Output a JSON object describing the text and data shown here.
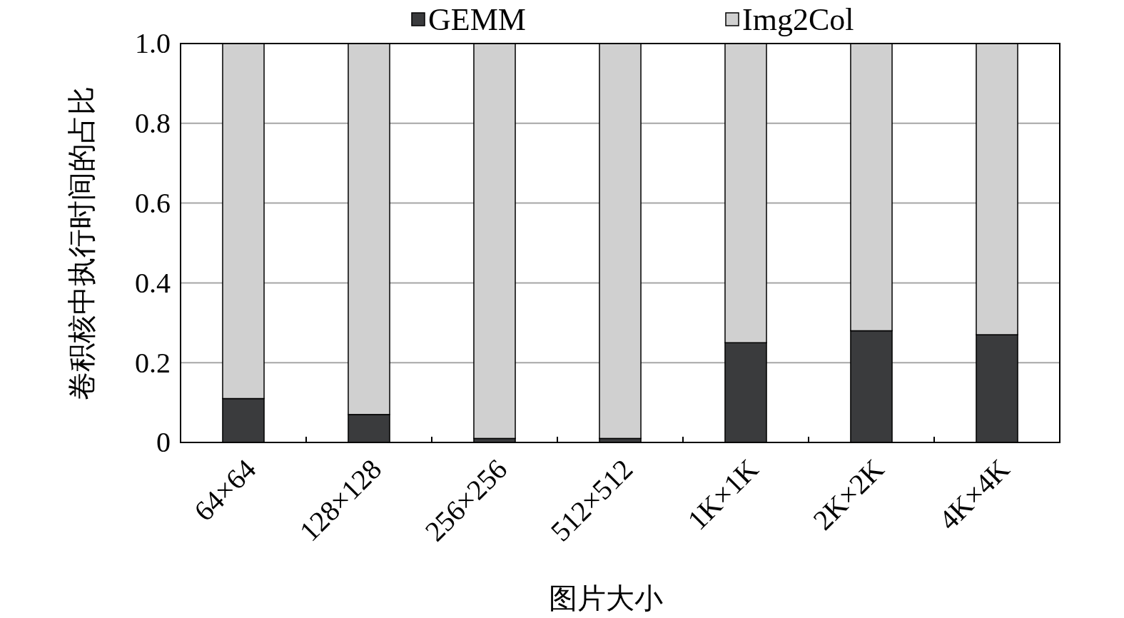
{
  "chart_data": {
    "type": "bar",
    "stacked": true,
    "xlabel": "图片大小",
    "ylabel": "卷积核中执行时间的占比",
    "categories": [
      "64×64",
      "128×128",
      "256×256",
      "512×512",
      "1K×1K",
      "2K×2K",
      "4K×4K"
    ],
    "series": [
      {
        "name": "GEMM",
        "color": "#3a3b3d",
        "values": [
          0.11,
          0.07,
          0.01,
          0.01,
          0.25,
          0.28,
          0.27
        ]
      },
      {
        "name": "Img2Col",
        "color": "#d0d0d0",
        "values": [
          0.89,
          0.93,
          0.99,
          0.99,
          0.75,
          0.72,
          0.73
        ]
      }
    ],
    "ylim": [
      0,
      1
    ],
    "yticks": [
      0,
      0.2,
      0.4,
      0.6,
      0.8,
      {
        "value": 1,
        "label": "1.0"
      }
    ],
    "grid": "y",
    "legend": "top"
  }
}
